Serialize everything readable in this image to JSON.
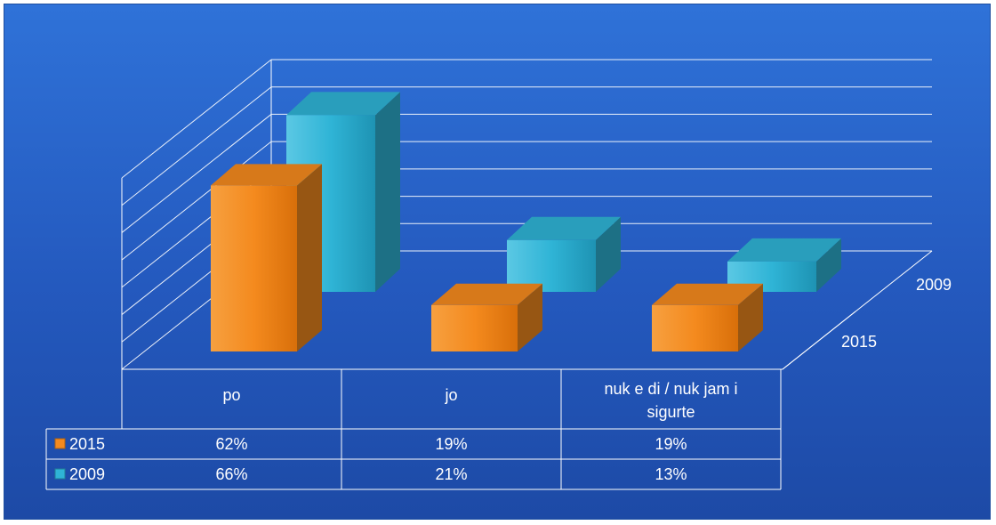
{
  "chart_data": {
    "type": "bar",
    "title": "",
    "categories": [
      "po",
      "jo",
      "nuk e di / nuk jam i sigurte"
    ],
    "category_lines": [
      [
        "po"
      ],
      [
        "jo"
      ],
      [
        "nuk e di / nuk jam i",
        "sigurte"
      ]
    ],
    "series": [
      {
        "name": "2015",
        "values": [
          62,
          19,
          19
        ],
        "labels": [
          "62%",
          "19%",
          "19%"
        ],
        "color": "#f48a1e"
      },
      {
        "name": "2009",
        "values": [
          66,
          21,
          13
        ],
        "labels": [
          "66%",
          "21%",
          "13%"
        ],
        "color": "#2fb4d6"
      }
    ],
    "ylim": [
      0,
      70
    ],
    "grid": true,
    "depth_labels": [
      "2009",
      "2015"
    ],
    "data_table": true,
    "colors": {
      "background": "#2459be",
      "grid": "#ffffff",
      "text": "#ffffff"
    }
  }
}
